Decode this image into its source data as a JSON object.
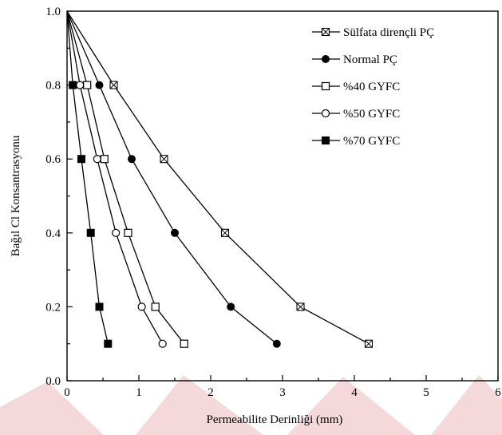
{
  "chart_data": {
    "type": "line",
    "title": "",
    "xlabel": "Permeabilite Derinliği (mm)",
    "ylabel": "Bağıl Cl Konsantrasyonu",
    "xlim": [
      0,
      6
    ],
    "ylim": [
      0.0,
      1.0
    ],
    "x_ticks": [
      "0",
      "1",
      "2",
      "3",
      "4",
      "5",
      "6"
    ],
    "y_ticks": [
      "0.0",
      "0.2",
      "0.4",
      "0.6",
      "0.8",
      "1.0"
    ],
    "grid": false,
    "legend_position": "top-right",
    "series": [
      {
        "name": "Sülfata dirençli PÇ",
        "marker": "crossed-square",
        "x": [
          0,
          0.65,
          1.35,
          2.2,
          3.25,
          4.2
        ],
        "y": [
          1.0,
          0.8,
          0.6,
          0.4,
          0.2,
          0.1
        ]
      },
      {
        "name": "Normal PÇ",
        "marker": "filled-circle",
        "x": [
          0,
          0.45,
          0.9,
          1.5,
          2.28,
          2.92
        ],
        "y": [
          1.0,
          0.8,
          0.6,
          0.4,
          0.2,
          0.1
        ]
      },
      {
        "name": "%40 GYFC",
        "marker": "open-square",
        "x": [
          0,
          0.28,
          0.52,
          0.85,
          1.23,
          1.63
        ],
        "y": [
          1.0,
          0.8,
          0.6,
          0.4,
          0.2,
          0.1
        ]
      },
      {
        "name": "%50 GYFC",
        "marker": "open-circle",
        "x": [
          0,
          0.18,
          0.42,
          0.68,
          1.04,
          1.33
        ],
        "y": [
          1.0,
          0.8,
          0.6,
          0.4,
          0.2,
          0.1
        ]
      },
      {
        "name": "%70 GYFC",
        "marker": "filled-square",
        "x": [
          0,
          0.08,
          0.2,
          0.33,
          0.45,
          0.57
        ],
        "y": [
          1.0,
          0.8,
          0.6,
          0.4,
          0.2,
          0.1
        ]
      }
    ]
  }
}
